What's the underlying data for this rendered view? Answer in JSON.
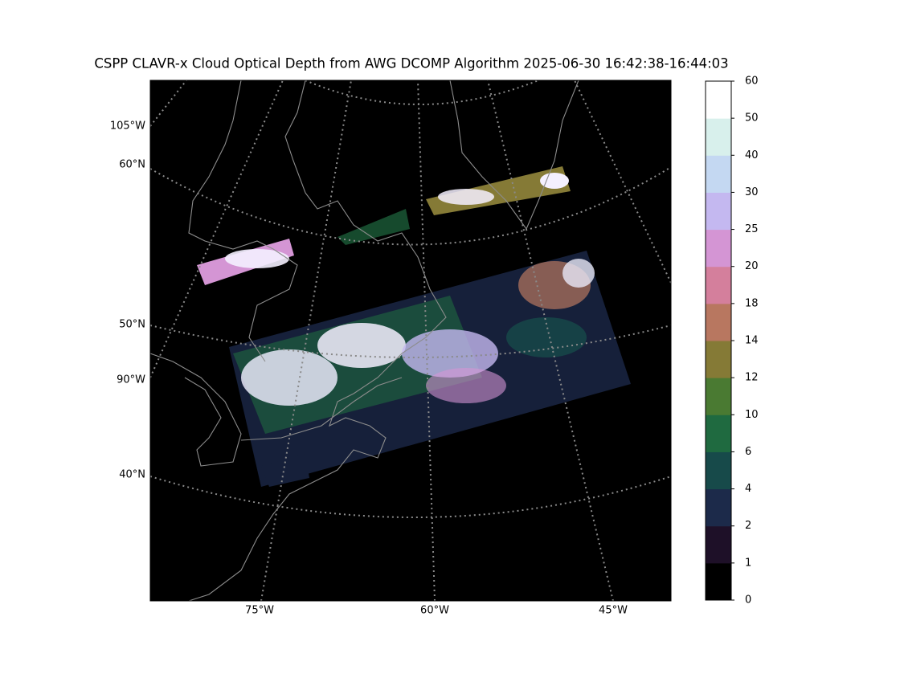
{
  "title": "CSPP CLAVR-x Cloud Optical Depth from AWG DCOMP Algorithm 2025-06-30 16:42:38-16:44:03",
  "map": {
    "left_labels": [
      "105°W",
      "60°N",
      "50°N",
      "90°W",
      "40°N"
    ],
    "bottom_labels": [
      "75°W",
      "60°W",
      "45°W"
    ]
  },
  "colorbar": {
    "ticks": [
      0,
      1,
      2,
      4,
      6,
      10,
      12,
      14,
      18,
      20,
      25,
      30,
      40,
      50,
      60
    ],
    "colors": [
      "#000000",
      "#1e1028",
      "#1c2a4a",
      "#174a4a",
      "#1f6a40",
      "#4a7a32",
      "#857a36",
      "#b87760",
      "#d47f9c",
      "#d495d4",
      "#c4b8f0",
      "#c4d8f2",
      "#d8f0ec",
      "#ffffff"
    ]
  }
}
